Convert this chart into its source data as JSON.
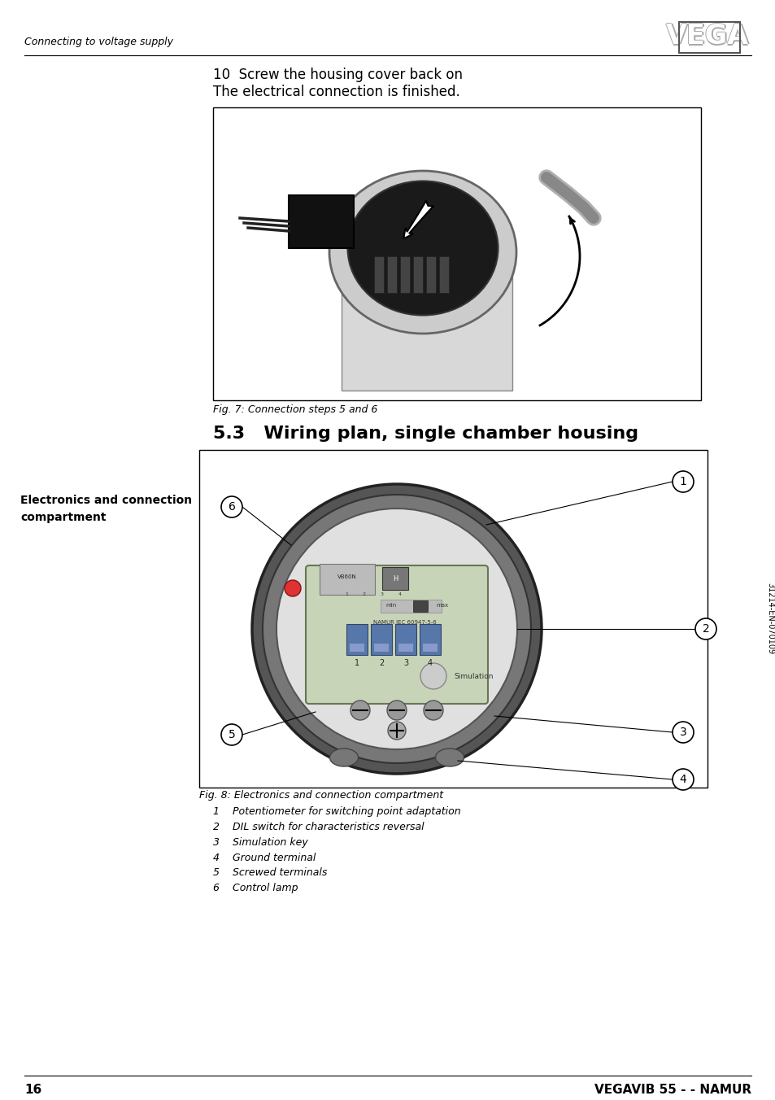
{
  "page_number": "16",
  "footer_right": "VEGAVIB 55 - - NAMUR",
  "header_left": "Connecting to voltage supply",
  "rotated_text": "31214-EN-070109",
  "step10_line1": "10  Screw the housing cover back on",
  "step10_line2": "The electrical connection is finished.",
  "fig7_caption": "Fig. 7: Connection steps 5 and 6",
  "section_title": "5.3   Wiring plan, single chamber housing",
  "sidebar_label_line1": "Electronics and connection",
  "sidebar_label_line2": "compartment",
  "fig8_caption": "Fig. 8: Electronics and connection compartment",
  "fig8_items": [
    "1    Potentiometer for switching point adaptation",
    "2    DIL switch for characteristics reversal",
    "3    Simulation key",
    "4    Ground terminal",
    "5    Screwed terminals",
    "6    Control lamp"
  ],
  "bg_color": "#ffffff",
  "text_color": "#000000"
}
